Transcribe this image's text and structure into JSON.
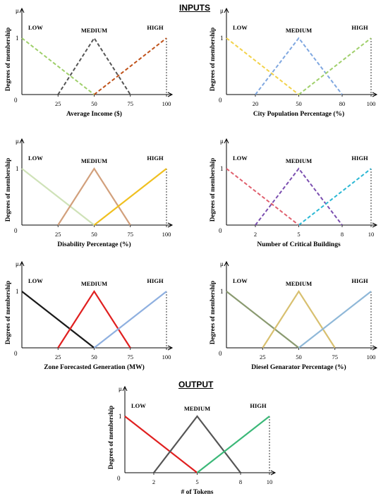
{
  "titles": {
    "inputs": "INPUTS",
    "output": "OUTPUT"
  },
  "chart_data": [
    {
      "type": "line",
      "xlabel": "Average Income ($)",
      "ylabel": "Degrees of membership",
      "mu": "μ",
      "y_ticks": [
        "0",
        "1"
      ],
      "xticks": [
        25,
        50,
        75,
        100
      ],
      "xlim": [
        0,
        100
      ],
      "ylim": [
        0,
        1
      ],
      "series": [
        {
          "name": "LOW",
          "x": [
            0,
            50
          ],
          "y": [
            1,
            0
          ],
          "color": "#9fcf6a",
          "dash": true
        },
        {
          "name": "MEDIUM",
          "x": [
            25,
            50,
            75
          ],
          "y": [
            0,
            1,
            0
          ],
          "color": "#555555",
          "dash": true
        },
        {
          "name": "HIGH",
          "x": [
            50,
            100
          ],
          "y": [
            0,
            1
          ],
          "color": "#c0521a",
          "dash": true
        }
      ]
    },
    {
      "type": "line",
      "xlabel": "City Population Percentage (%)",
      "ylabel": "Degrees of membership",
      "mu": "μ",
      "y_ticks": [
        "0",
        "1"
      ],
      "xticks": [
        20,
        50,
        80,
        100
      ],
      "xlim": [
        0,
        100
      ],
      "ylim": [
        0,
        1
      ],
      "series": [
        {
          "name": "LOW",
          "x": [
            0,
            50
          ],
          "y": [
            1,
            0
          ],
          "color": "#f2d24a",
          "dash": true
        },
        {
          "name": "MEDIUM",
          "x": [
            20,
            50,
            80
          ],
          "y": [
            0,
            1,
            0
          ],
          "color": "#7fa7e0",
          "dash": true
        },
        {
          "name": "HIGH",
          "x": [
            50,
            100
          ],
          "y": [
            0,
            1
          ],
          "color": "#9fcf6a",
          "dash": true
        }
      ]
    },
    {
      "type": "line",
      "xlabel": "Disability Percentage (%)",
      "ylabel": "Degrees of membership",
      "mu": "μ",
      "y_ticks": [
        "0",
        "1"
      ],
      "xticks": [
        25,
        50,
        75,
        100
      ],
      "xlim": [
        0,
        100
      ],
      "ylim": [
        0,
        1
      ],
      "series": [
        {
          "name": "LOW",
          "x": [
            0,
            50
          ],
          "y": [
            1,
            0
          ],
          "color": "#cfe2b8",
          "dash": false
        },
        {
          "name": "MEDIUM",
          "x": [
            25,
            50,
            75
          ],
          "y": [
            0,
            1,
            0
          ],
          "color": "#d2a07c",
          "dash": false
        },
        {
          "name": "HIGH",
          "x": [
            50,
            100
          ],
          "y": [
            0,
            1
          ],
          "color": "#f0c020",
          "dash": false
        }
      ]
    },
    {
      "type": "line",
      "xlabel": "Number of Critical Buildings",
      "ylabel": "Degrees of membership",
      "mu": "μ",
      "y_ticks": [
        "0",
        "1"
      ],
      "xticks": [
        2,
        5,
        8,
        10
      ],
      "xlim": [
        0,
        10
      ],
      "ylim": [
        0,
        1
      ],
      "series": [
        {
          "name": "LOW",
          "x": [
            0,
            5
          ],
          "y": [
            1,
            0
          ],
          "color": "#e0606e",
          "dash": true
        },
        {
          "name": "MEDIUM",
          "x": [
            2,
            5,
            8
          ],
          "y": [
            0,
            1,
            0
          ],
          "color": "#7b4fb0",
          "dash": true
        },
        {
          "name": "HIGH",
          "x": [
            5,
            10
          ],
          "y": [
            0,
            1
          ],
          "color": "#2bb8d4",
          "dash": true
        }
      ]
    },
    {
      "type": "line",
      "xlabel": "Zone Forecasted Generation (MW)",
      "ylabel": "Degrees of membership",
      "mu": "μ",
      "y_ticks": [
        "0",
        "1"
      ],
      "xticks": [
        25,
        50,
        75,
        100
      ],
      "xlim": [
        0,
        100
      ],
      "ylim": [
        0,
        1
      ],
      "series": [
        {
          "name": "LOW",
          "x": [
            0,
            50
          ],
          "y": [
            1,
            0
          ],
          "color": "#1a1a1a",
          "dash": false
        },
        {
          "name": "MEDIUM",
          "x": [
            25,
            50,
            75
          ],
          "y": [
            0,
            1,
            0
          ],
          "color": "#e02020",
          "dash": false
        },
        {
          "name": "HIGH",
          "x": [
            50,
            100
          ],
          "y": [
            0,
            1
          ],
          "color": "#8fb0e0",
          "dash": false
        }
      ]
    },
    {
      "type": "line",
      "xlabel": "Diesel Genarator Percentage (%)",
      "ylabel": "Degrees of membership",
      "mu": "μ",
      "y_ticks": [
        "0",
        "1"
      ],
      "xticks": [
        25,
        50,
        75,
        100
      ],
      "xlim": [
        0,
        100
      ],
      "ylim": [
        0,
        1
      ],
      "series": [
        {
          "name": "LOW",
          "x": [
            0,
            50
          ],
          "y": [
            1,
            0
          ],
          "color": "#8a9a70",
          "dash": false
        },
        {
          "name": "MEDIUM",
          "x": [
            25,
            50,
            75
          ],
          "y": [
            0,
            1,
            0
          ],
          "color": "#d8c070",
          "dash": false
        },
        {
          "name": "HIGH",
          "x": [
            50,
            100
          ],
          "y": [
            0,
            1
          ],
          "color": "#8fb8d8",
          "dash": false
        }
      ]
    },
    {
      "type": "line",
      "xlabel": "# of Tokens",
      "ylabel": "Degrees of membership",
      "mu": "μ",
      "y_ticks": [
        "0",
        "1"
      ],
      "xticks": [
        2,
        5,
        8,
        10
      ],
      "xlim": [
        0,
        10
      ],
      "ylim": [
        0,
        1
      ],
      "series": [
        {
          "name": "LOW",
          "x": [
            0,
            5
          ],
          "y": [
            1,
            0
          ],
          "color": "#e02020",
          "dash": false
        },
        {
          "name": "MEDIUM",
          "x": [
            2,
            5,
            8
          ],
          "y": [
            0,
            1,
            0
          ],
          "color": "#555555",
          "dash": false
        },
        {
          "name": "HIGH",
          "x": [
            5,
            10
          ],
          "y": [
            0,
            1
          ],
          "color": "#3bb878",
          "dash": false
        }
      ]
    }
  ]
}
